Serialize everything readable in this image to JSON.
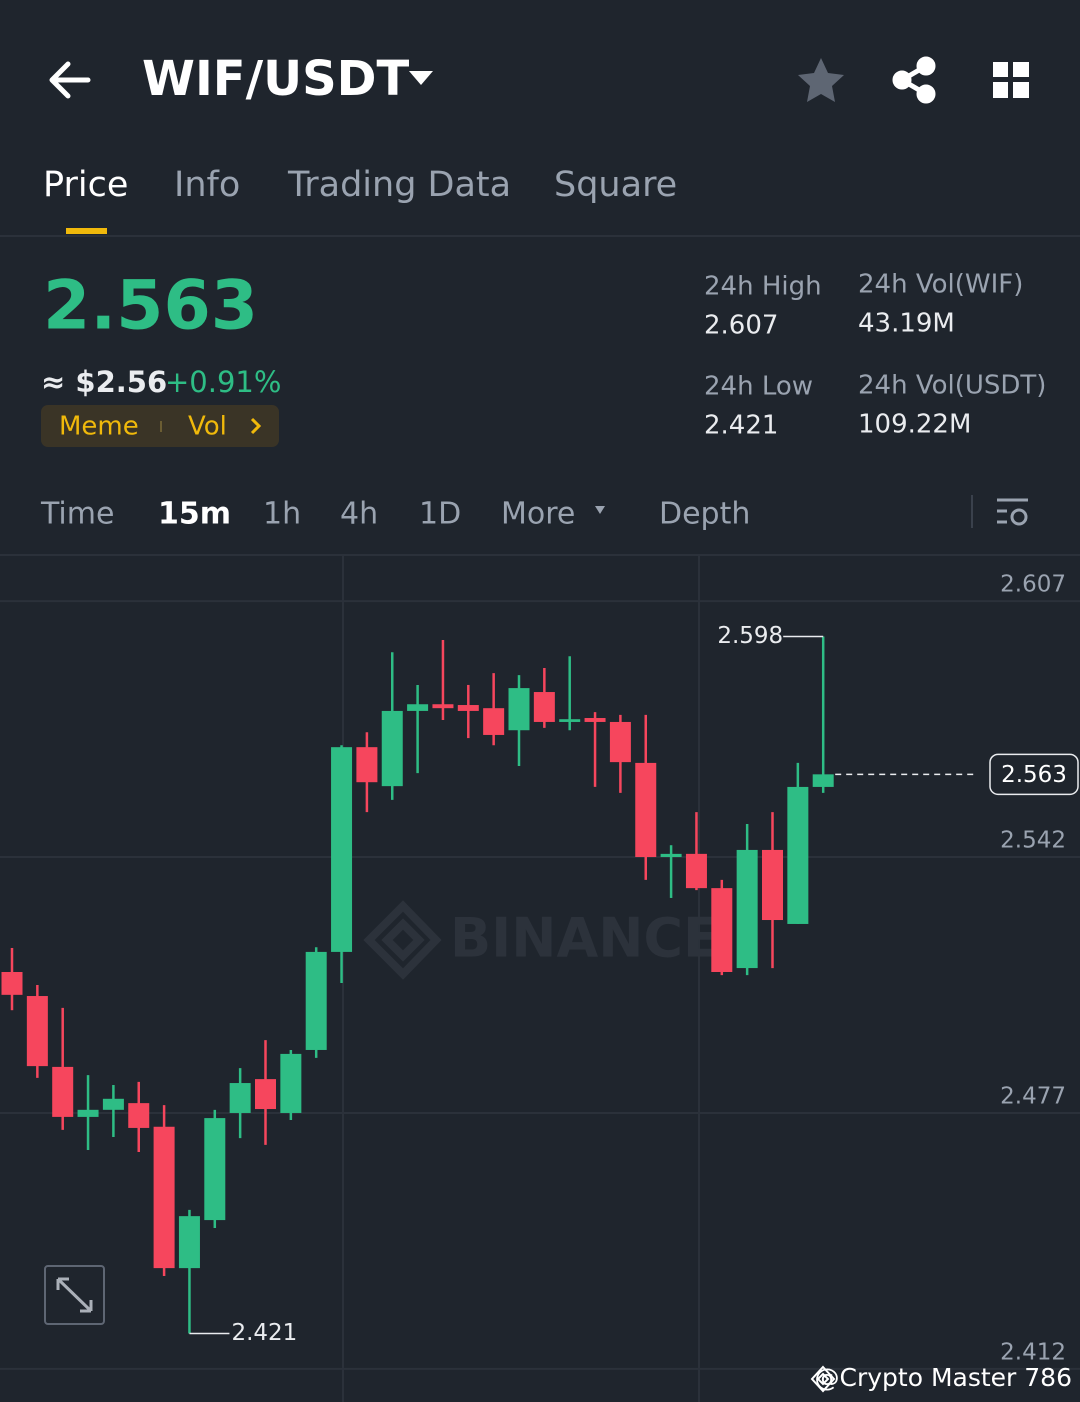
{
  "header": {
    "pair": "WIF/USDT"
  },
  "tabs": [
    "Price",
    "Info",
    "Trading Data",
    "Square"
  ],
  "price": {
    "last": "2.563",
    "usd": "≈ $2.56",
    "change": "+0.91%",
    "tags": [
      "Meme",
      "Vol"
    ]
  },
  "stats": [
    {
      "label": "24h High",
      "value": "2.607"
    },
    {
      "label": "24h Vol(WIF)",
      "value": "43.19M"
    },
    {
      "label": "24h Low",
      "value": "2.421"
    },
    {
      "label": "24h Vol(USDT)",
      "value": "109.22M"
    }
  ],
  "intervals": [
    "Time",
    "15m",
    "1h",
    "4h",
    "1D",
    "More",
    "Depth"
  ],
  "watermark": "BINANCE",
  "footer": "@Crypto Master 786",
  "chart_data": {
    "type": "candlestick",
    "categories": [
      null,
      null,
      null,
      null,
      null,
      null,
      null,
      null,
      null,
      null,
      null,
      null,
      null,
      null,
      null,
      null,
      null,
      null,
      null,
      null,
      null,
      null,
      null,
      null,
      null,
      null,
      null,
      null,
      null,
      null,
      null,
      null,
      null
    ],
    "open": [
      2.5128,
      2.5067,
      2.4887,
      2.476,
      2.4778,
      2.4795,
      2.4735,
      2.4376,
      2.4498,
      2.477,
      2.4856,
      2.477,
      2.493,
      2.5179,
      2.5699,
      2.56,
      2.5791,
      2.5808,
      2.5806,
      2.5798,
      2.5742,
      2.5839,
      2.5763,
      2.5773,
      2.5763,
      2.5659,
      2.542,
      2.5428,
      2.5341,
      2.5138,
      2.5438,
      2.525,
      2.5598
    ],
    "high": [
      2.5189,
      2.5095,
      2.5037,
      2.4866,
      2.4841,
      2.4849,
      2.479,
      2.4524,
      2.4778,
      2.4884,
      2.4955,
      2.493,
      2.5191,
      2.5704,
      2.5737,
      2.594,
      2.5857,
      2.5971,
      2.5857,
      2.5887,
      2.5882,
      2.59,
      2.593,
      2.5788,
      2.5781,
      2.5781,
      2.545,
      2.5534,
      2.5362,
      2.5504,
      2.5534,
      2.5659,
      2.598
    ],
    "low": [
      2.5031,
      2.4859,
      2.4727,
      2.4676,
      2.4709,
      2.4671,
      2.4356,
      2.421,
      2.4478,
      2.4706,
      2.4689,
      2.4752,
      2.491,
      2.51,
      2.5534,
      2.5565,
      2.5633,
      2.5768,
      2.5722,
      2.5704,
      2.5651,
      2.5748,
      2.5742,
      2.5598,
      2.5583,
      2.5362,
      2.5316,
      2.5336,
      2.512,
      2.512,
      2.5138,
      2.525,
      2.5583
    ],
    "close": [
      2.507,
      2.4889,
      2.476,
      2.4778,
      2.4806,
      2.4732,
      2.4376,
      2.4508,
      2.4757,
      2.4846,
      2.478,
      2.492,
      2.5179,
      2.5699,
      2.561,
      2.5791,
      2.5808,
      2.5798,
      2.5791,
      2.573,
      2.5849,
      2.5763,
      2.577,
      2.5763,
      2.5661,
      2.542,
      2.5428,
      2.5341,
      2.5128,
      2.5438,
      2.526,
      2.5598,
      2.563
    ],
    "up_color": "#2ebd85",
    "down_color": "#f6465d",
    "ylim": [
      2.4036,
      2.6187
    ],
    "yticks": [
      2.607,
      2.542,
      2.477,
      2.412
    ],
    "grid": true
  }
}
